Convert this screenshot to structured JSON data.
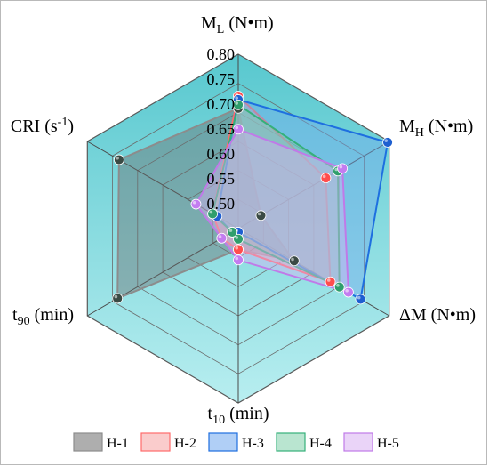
{
  "chart_data": {
    "type": "radar",
    "axes": [
      {
        "key": "ml",
        "main": "M",
        "sub": "L",
        "unit": " (N•m)",
        "sup": ""
      },
      {
        "key": "mh",
        "main": "M",
        "sub": "H",
        "unit": " (N•m)",
        "sup": ""
      },
      {
        "key": "dm",
        "main": "ΔM",
        "sub": "",
        "unit": " (N•m)",
        "sup": ""
      },
      {
        "key": "t10",
        "main": "t",
        "sub": "10",
        "unit": " (min)",
        "sup": ""
      },
      {
        "key": "t90",
        "main": "t",
        "sub": "90",
        "unit": " (min)",
        "sup": ""
      },
      {
        "key": "cri",
        "main": "CRI (s",
        "sub": "",
        "unit": ")",
        "sup": "-1"
      }
    ],
    "ml_ticks": [
      "0.80",
      "0.75",
      "0.70",
      "0.65",
      "0.60",
      "0.55",
      "0.50"
    ],
    "ml_range": [
      0.45,
      0.8
    ],
    "grid_rings": 6,
    "series": [
      {
        "name": "H-1",
        "color": "#8c8c8c",
        "fill": "#6b6b6b",
        "point": "#3a4a44",
        "values": [
          0.69,
          0.15,
          0.37,
          0.12,
          0.8,
          0.79
        ]
      },
      {
        "name": "H-2",
        "color": "#ff6b6b",
        "fill": "#f5a3a3",
        "point": "#ff4d4d",
        "values": [
          0.76,
          0.58,
          0.61,
          0.12,
          0.11,
          0.17
        ]
      },
      {
        "name": "H-3",
        "color": "#1e6fe0",
        "fill": "#6fa8ef",
        "point": "#1e5fd0",
        "values": [
          0.74,
          0.99,
          0.81,
          0.02,
          0.04,
          0.14
        ]
      },
      {
        "name": "H-4",
        "color": "#35b07a",
        "fill": "#7fd0aa",
        "point": "#2f9e6c",
        "values": [
          0.71,
          0.66,
          0.67,
          0.06,
          0.04,
          0.17
        ]
      },
      {
        "name": "H-5",
        "color": "#c07ae8",
        "fill": "#d9b0f2",
        "point": "#c37cf0",
        "values": [
          0.57,
          0.69,
          0.73,
          0.18,
          0.11,
          0.28
        ]
      }
    ]
  }
}
